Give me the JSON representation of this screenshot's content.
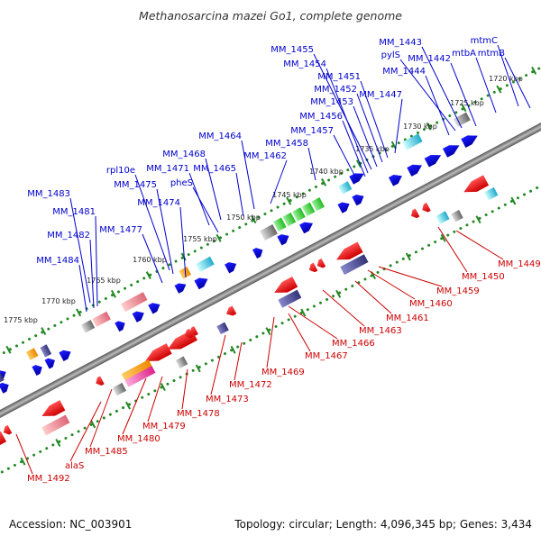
{
  "title": "Methanosarcina mazei Go1, complete genome",
  "footer": {
    "accession": "Accession: NC_003901",
    "topology": "Topology: circular; Length: 4,096,345 bp; Genes: 3,434"
  },
  "colors": {
    "forward_label": "#0000cc",
    "reverse_label": "#cc0000",
    "backbone": "#888888",
    "tick_dot": "#228822"
  },
  "ticks": [
    "1720 kbp",
    "1725 kbp",
    "1730 kbp",
    "1735 kbp",
    "1740 kbp",
    "1745 kbp",
    "1750 kbp",
    "1755 kbp",
    "1760 kbp",
    "1765 kbp",
    "1770 kbp",
    "1775 kbp"
  ],
  "forward_genes": [
    "mtmB",
    "mtmC",
    "mtbA",
    "MM_1442",
    "pylS",
    "MM_1443",
    "MM_1444",
    "MM_1447",
    "MM_1451",
    "MM_1452",
    "MM_1453",
    "MM_1455",
    "MM_1454",
    "MM_1456",
    "MM_1457",
    "MM_1458",
    "MM_1462",
    "MM_1464",
    "MM_1465",
    "MM_1468",
    "MM_1471",
    "pheS",
    "rpl10e",
    "MM_1475",
    "MM_1474",
    "MM_1477",
    "MM_1483",
    "MM_1481",
    "MM_1482",
    "MM_1484"
  ],
  "reverse_genes": [
    "MM_1449",
    "MM_1450",
    "MM_1459",
    "MM_1460",
    "MM_1461",
    "MM_1463",
    "MM_1466",
    "MM_1467",
    "MM_1469",
    "MM_1472",
    "MM_1473",
    "MM_1478",
    "MM_1479",
    "MM_1480",
    "MM_1485",
    "alaS",
    "MM_1492"
  ]
}
